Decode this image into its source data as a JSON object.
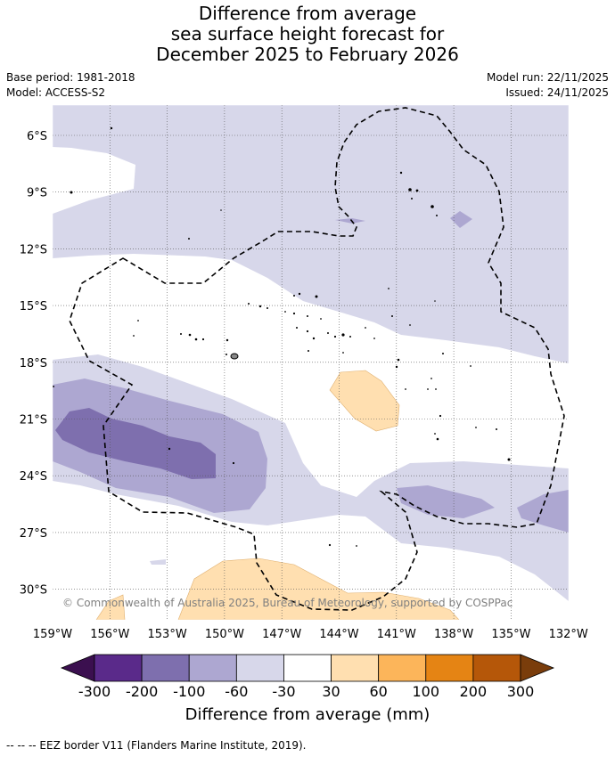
{
  "title": {
    "line1": "Difference from average",
    "line2": "sea surface height forecast for",
    "line3": "December 2025 to February 2026"
  },
  "meta": {
    "base_period": "Base period: 1981-2018",
    "model": "Model: ACCESS-S2",
    "model_run": "Model run: 22/11/2025",
    "issued": "Issued: 24/11/2025"
  },
  "map": {
    "lat_ticks": [
      "6°S",
      "9°S",
      "12°S",
      "15°S",
      "18°S",
      "21°S",
      "24°S",
      "27°S",
      "30°S"
    ],
    "lon_ticks": [
      "159°W",
      "156°W",
      "153°W",
      "150°W",
      "147°W",
      "144°W",
      "141°W",
      "138°W",
      "135°W",
      "132°W"
    ],
    "copyright": "© Commonwealth of Australia 2025, Bureau of Meteorology, supported by COSPPac"
  },
  "colorbar": {
    "labels": [
      "-300",
      "-200",
      "-100",
      "-60",
      "-30",
      "30",
      "60",
      "100",
      "200",
      "300"
    ],
    "colors": [
      "#3b0f4f",
      "#5a2a8a",
      "#7e6fae",
      "#ada7d1",
      "#d7d7ea",
      "#ffffff",
      "#ffdfb0",
      "#fcb55a",
      "#e58414",
      "#b55709",
      "#7a3d0b"
    ],
    "title": "Difference from average (mm)"
  },
  "footer": "--  --  -- EEZ border V11 (Flanders Marine Institute, 2019)."
}
